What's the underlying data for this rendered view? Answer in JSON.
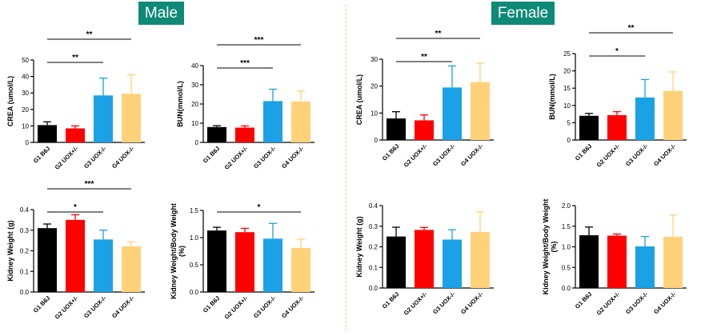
{
  "panels": {
    "male_label": "Male",
    "female_label": "Female"
  },
  "colors": {
    "panel_title_bg": "#0e8a77",
    "G1": "#000000",
    "G2": "#ff0000",
    "G3": "#1ba1e6",
    "G4": "#ffd27a",
    "divider": "#e8c87a"
  },
  "chart_data": [
    {
      "id": "male-crea",
      "panel": "Male",
      "type": "bar",
      "categories": [
        "G1 B6J",
        "G2 UOX+/-",
        "G3 UOX-/-",
        "G4 UOX-/-"
      ],
      "values": [
        10.5,
        8.5,
        28.5,
        29.5
      ],
      "errors": [
        2.0,
        1.5,
        10.5,
        11.5
      ],
      "ylabel": "CREA (umol/L)",
      "ylim": [
        0,
        50
      ],
      "yticks": [
        0,
        10,
        20,
        30,
        40,
        50
      ],
      "ytick_labels": [
        "0",
        "10",
        "20",
        "30",
        "40",
        "50"
      ],
      "significance": [
        {
          "from": 0,
          "to": 2,
          "label": "**"
        },
        {
          "from": 0,
          "to": 3,
          "label": "**"
        }
      ]
    },
    {
      "id": "male-bun",
      "panel": "Male",
      "type": "bar",
      "categories": [
        "G1 B6J",
        "G2 UOX+/-",
        "G3 UOX-/-",
        "G4 UOX-/-"
      ],
      "values": [
        8.0,
        7.7,
        21.5,
        21.3
      ],
      "errors": [
        0.7,
        0.9,
        6.2,
        5.5
      ],
      "ylabel": "BUN(mmol/L)",
      "ylim": [
        0,
        40
      ],
      "yticks": [
        0,
        10,
        20,
        30,
        40
      ],
      "ytick_labels": [
        "0",
        "10",
        "20",
        "30",
        "40"
      ],
      "significance": [
        {
          "from": 0,
          "to": 2,
          "label": "***"
        },
        {
          "from": 0,
          "to": 3,
          "label": "***"
        }
      ]
    },
    {
      "id": "female-crea",
      "panel": "Female",
      "type": "bar",
      "categories": [
        "G1 B6J",
        "G2 UOX+/-",
        "G3 UOX-/-",
        "G4 UOX-/-"
      ],
      "values": [
        8.0,
        7.3,
        19.5,
        21.5
      ],
      "errors": [
        2.5,
        2.0,
        8.0,
        7.0
      ],
      "ylabel": "CREA (umol/L)",
      "ylim": [
        0,
        30
      ],
      "yticks": [
        0,
        10,
        20,
        30
      ],
      "ytick_labels": [
        "0",
        "10",
        "20",
        "30"
      ],
      "significance": [
        {
          "from": 0,
          "to": 2,
          "label": "**"
        },
        {
          "from": 0,
          "to": 3,
          "label": "**"
        }
      ]
    },
    {
      "id": "female-bun",
      "panel": "Female",
      "type": "bar",
      "categories": [
        "G1 B6J",
        "G2 UOX+/-",
        "G3 UOX-/-",
        "G4 UOX-/-"
      ],
      "values": [
        7.0,
        7.2,
        12.3,
        14.2
      ],
      "errors": [
        0.7,
        1.0,
        5.2,
        5.5
      ],
      "ylabel": "BUN(mmol/L)",
      "ylim": [
        0,
        25
      ],
      "yticks": [
        0,
        5,
        10,
        15,
        20,
        25
      ],
      "ytick_labels": [
        "0",
        "5",
        "10",
        "15",
        "20",
        "25"
      ],
      "significance": [
        {
          "from": 0,
          "to": 2,
          "label": "*"
        },
        {
          "from": 0,
          "to": 3,
          "label": "**"
        }
      ]
    },
    {
      "id": "male-kw",
      "panel": "Male",
      "type": "bar",
      "categories": [
        "G1 B6J",
        "G2 UOX+/-",
        "G3 UOX-/-",
        "G4 UOX-/-"
      ],
      "values": [
        0.31,
        0.35,
        0.255,
        0.222
      ],
      "errors": [
        0.02,
        0.025,
        0.045,
        0.022
      ],
      "ylabel": "Kidney Weight (g)",
      "ylim": [
        0,
        0.4
      ],
      "yticks": [
        0,
        0.1,
        0.2,
        0.3,
        0.4
      ],
      "ytick_labels": [
        "0.0",
        "0.1",
        "0.2",
        "0.3",
        "0.4"
      ],
      "significance": [
        {
          "from": 0,
          "to": 2,
          "label": "*"
        },
        {
          "from": 0,
          "to": 3,
          "label": "***"
        }
      ]
    },
    {
      "id": "male-kwbw",
      "panel": "Male",
      "type": "bar",
      "categories": [
        "G1 B6J",
        "G2 UOX+/-",
        "G3 UOX-/-",
        "G4 UOX-/-"
      ],
      "values": [
        1.13,
        1.1,
        0.98,
        0.81
      ],
      "errors": [
        0.06,
        0.07,
        0.28,
        0.16
      ],
      "ylabel": "Kidney Weight/Body Weight (%)",
      "ylim": [
        0,
        1.5
      ],
      "yticks": [
        0,
        0.5,
        1.0,
        1.5
      ],
      "ytick_labels": [
        "0.0",
        "0.5",
        "1.0",
        "1.5"
      ],
      "significance": [
        {
          "from": 0,
          "to": 3,
          "label": "*"
        }
      ]
    },
    {
      "id": "female-kw",
      "panel": "Female",
      "type": "bar",
      "categories": [
        "G1 B6J",
        "G2 UOX+/-",
        "G3 UOX-/-",
        "G4 UOX-/-"
      ],
      "values": [
        0.25,
        0.282,
        0.235,
        0.272
      ],
      "errors": [
        0.045,
        0.012,
        0.048,
        0.098
      ],
      "ylabel": "Kidney Weight (g)",
      "ylim": [
        0,
        0.4
      ],
      "yticks": [
        0,
        0.1,
        0.2,
        0.3,
        0.4
      ],
      "ytick_labels": [
        "0.0",
        "0.1",
        "0.2",
        "0.3",
        "0.4"
      ],
      "significance": []
    },
    {
      "id": "female-kwbw",
      "panel": "Female",
      "type": "bar",
      "categories": [
        "G1 B6J",
        "G2 UOX+/-",
        "G3 UOX-/-",
        "G4 UOX-/-"
      ],
      "values": [
        1.28,
        1.27,
        1.01,
        1.24
      ],
      "errors": [
        0.2,
        0.04,
        0.24,
        0.53
      ],
      "ylabel": "Kidney Weight/Body Weight (%)",
      "ylim": [
        0,
        2.0
      ],
      "yticks": [
        0,
        0.5,
        1.0,
        1.5,
        2.0
      ],
      "ytick_labels": [
        "0.0",
        "0.5",
        "1.0",
        "1.5",
        "2.0"
      ],
      "significance": []
    }
  ]
}
